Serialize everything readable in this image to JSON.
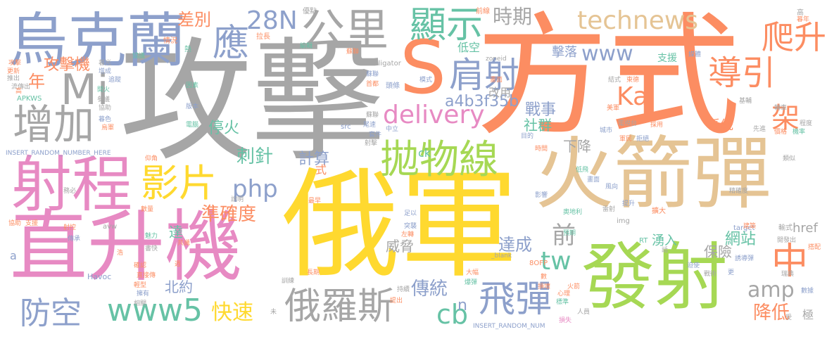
{
  "palette": {
    "gray": "#a6a6a6",
    "orange": "#fc8d62",
    "yellow": "#ffd92f",
    "green": "#a6d854",
    "pink": "#e78ac3",
    "blue": "#8da0cb",
    "teal": "#66c2a5",
    "tan": "#e5c494"
  },
  "words": [
    {
      "text": "攻擊",
      "color": "#a6a6a6"
    },
    {
      "text": "方式",
      "color": "#fc8d62"
    },
    {
      "text": "俄軍",
      "color": "#ffd92f"
    },
    {
      "text": "火箭彈",
      "color": "#e5c494"
    },
    {
      "text": "直升機",
      "color": "#e78ac3"
    },
    {
      "text": "發射",
      "color": "#a6d854"
    },
    {
      "text": "烏克蘭",
      "color": "#8da0cb"
    },
    {
      "text": "射程",
      "color": "#e78ac3"
    },
    {
      "text": "S",
      "color": "#fc8d62"
    },
    {
      "text": "拋物線",
      "color": "#a6d854"
    },
    {
      "text": "Mi",
      "color": "#a6a6a6"
    },
    {
      "text": "公里",
      "color": "#a6a6a6"
    },
    {
      "text": "顯示",
      "color": "#66c2a5"
    },
    {
      "text": "technews",
      "color": "#e5c494"
    },
    {
      "text": "肩射",
      "color": "#8da0cb"
    },
    {
      "text": "增加",
      "color": "#a6a6a6"
    },
    {
      "text": "影片",
      "color": "#ffd92f"
    },
    {
      "text": "俄羅斯",
      "color": "#a6a6a6"
    },
    {
      "text": "飛彈",
      "color": "#8da0cb"
    },
    {
      "text": "www5",
      "color": "#66c2a5"
    },
    {
      "text": "防空",
      "color": "#8da0cb"
    },
    {
      "text": "導引",
      "color": "#fc8d62"
    },
    {
      "text": "delivery",
      "color": "#e78ac3"
    },
    {
      "text": "應",
      "color": "#8da0cb"
    },
    {
      "text": "28N",
      "color": "#8da0cb"
    },
    {
      "text": "時期",
      "color": "#a6a6a6"
    },
    {
      "text": "www",
      "color": "#8da0cb"
    },
    {
      "text": "爬升",
      "color": "#fc8d62"
    },
    {
      "text": "Ka",
      "color": "#fc8d62"
    },
    {
      "text": "架",
      "color": "#fc8d62"
    },
    {
      "text": "中",
      "color": "#fc8d62"
    },
    {
      "text": "php",
      "color": "#8da0cb"
    },
    {
      "text": "cb",
      "color": "#66c2a5"
    },
    {
      "text": "快速",
      "color": "#ffd92f"
    },
    {
      "text": "tw",
      "color": "#66c2a5"
    },
    {
      "text": "前",
      "color": "#a6a6a6"
    },
    {
      "text": "amp",
      "color": "#a6a6a6"
    },
    {
      "text": "降低",
      "color": "#fc8d62"
    },
    {
      "text": "傳統",
      "color": "#8da0cb"
    },
    {
      "text": "達成",
      "color": "#8da0cb"
    },
    {
      "text": "準確度",
      "color": "#fc8d62"
    },
    {
      "text": "刺針",
      "color": "#66c2a5"
    },
    {
      "text": "計算",
      "color": "#8da0cb"
    },
    {
      "text": "差別",
      "color": "#fc8d62"
    },
    {
      "text": "攻擊機",
      "color": "#fc8d62"
    },
    {
      "text": "年",
      "color": "#fc8d62"
    },
    {
      "text": "a4b3f35b",
      "color": "#8da0cb"
    },
    {
      "text": "戰事",
      "color": "#8da0cb"
    },
    {
      "text": "停火",
      "color": "#66c2a5"
    },
    {
      "text": "社群",
      "color": "#66c2a5"
    },
    {
      "text": "下降",
      "color": "#a6a6a6"
    },
    {
      "text": "系統",
      "color": "#fc8d62"
    },
    {
      "text": "網站",
      "color": "#66c2a5"
    },
    {
      "text": "保險",
      "color": "#a6a6a6"
    },
    {
      "text": "湧入",
      "color": "#66c2a5"
    },
    {
      "text": "威脅",
      "color": "#a6a6a6"
    },
    {
      "text": "北約",
      "color": "#8da0cb"
    },
    {
      "text": "達",
      "color": "#66c2a5"
    },
    {
      "text": "href",
      "color": "#a6a6a6"
    },
    {
      "text": "擊落",
      "color": "#8da0cb"
    },
    {
      "text": "改用",
      "color": "#a6a6a6"
    },
    {
      "text": "低空",
      "color": "#66c2a5"
    },
    {
      "text": "支援",
      "color": "#66c2a5"
    },
    {
      "text": "極",
      "color": "#a6a6a6"
    },
    {
      "text": "式",
      "color": "#fc8d62"
    },
    {
      "text": "n",
      "color": "#8da0cb"
    },
    {
      "text": "ck",
      "color": "#66c2a5"
    },
    {
      "text": "a",
      "color": "#8da0cb"
    },
    {
      "text": "INSERT_RANDOM_NUMBER_HERE",
      "color": "#8da0cb"
    },
    {
      "text": "INSERT_RANDOM_NUM",
      "color": "#8da0cb"
    },
    {
      "text": "Alligator",
      "color": "#a6a6a6"
    },
    {
      "text": "zoneid",
      "color": "#a6a6a6"
    },
    {
      "text": "APKWS",
      "color": "#66c2a5"
    },
    {
      "text": "Havoc",
      "color": "#8da0cb"
    },
    {
      "text": "avw",
      "color": "#a6a6a6"
    },
    {
      "text": "src",
      "color": "#8da0cb"
    },
    {
      "text": "img",
      "color": "#a6a6a6"
    },
    {
      "text": "RT",
      "color": "#66c2a5"
    },
    {
      "text": "target",
      "color": "#8da0cb"
    },
    {
      "text": "8OFP",
      "color": "#fc8d62"
    },
    {
      "text": "_blank",
      "color": "#a6a6a6"
    },
    {
      "text": "拉長",
      "color": "#fc8d62"
    },
    {
      "text": "優點",
      "color": "#a6a6a6"
    },
    {
      "text": "前線",
      "color": "#fc8d62"
    },
    {
      "text": "高",
      "color": "#a6a6a6"
    },
    {
      "text": "媒體",
      "color": "#8da0cb"
    },
    {
      "text": "基輔",
      "color": "#a6a6a6"
    },
    {
      "text": "更新",
      "color": "#fc8d62"
    },
    {
      "text": "暮光",
      "color": "#a6a6a6"
    },
    {
      "text": "情況",
      "color": "#fc8d62"
    },
    {
      "text": "熱",
      "color": "#66c2a5"
    },
    {
      "text": "蘇聯",
      "color": "#fc8d62"
    },
    {
      "text": "蘇聯",
      "color": "#8da0cb"
    },
    {
      "text": "蘇聯",
      "color": "#a6a6a6"
    },
    {
      "text": "編輯",
      "color": "#66c2a5"
    },
    {
      "text": "首都",
      "color": "#fc8d62"
    },
    {
      "text": "頭條",
      "color": "#8da0cb"
    },
    {
      "text": "模式",
      "color": "#8da0cb"
    },
    {
      "text": "因素",
      "color": "#66c2a5"
    },
    {
      "text": "版本",
      "color": "#8da0cb"
    },
    {
      "text": "畫面",
      "color": "#fc8d62"
    },
    {
      "text": "追蹤",
      "color": "#8da0cb"
    },
    {
      "text": "協助",
      "color": "#a6a6a6"
    },
    {
      "text": "流傳出",
      "color": "#a6a6a6"
    },
    {
      "text": "推出",
      "color": "#a6a6a6"
    },
    {
      "text": "攻擊",
      "color": "#fc8d62"
    },
    {
      "text": "開火",
      "color": "#66c2a5"
    },
    {
      "text": "暮色",
      "color": "#8da0cb"
    },
    {
      "text": "烏軍",
      "color": "#fc8d62"
    },
    {
      "text": "尾速",
      "color": "#8da0cb"
    },
    {
      "text": "套件",
      "color": "#8da0cb"
    },
    {
      "text": "中立",
      "color": "#8da0cb"
    },
    {
      "text": "射擊",
      "color": "#a6a6a6"
    },
    {
      "text": "目的",
      "color": "#8da0cb"
    },
    {
      "text": "結式",
      "color": "#a6a6a6"
    },
    {
      "text": "東德",
      "color": "#fc8d62"
    },
    {
      "text": "轉車",
      "color": "#a6a6a6"
    },
    {
      "text": "美軍",
      "color": "#fc8d62"
    },
    {
      "text": "電視台",
      "color": "#a6a6a6"
    },
    {
      "text": "採用",
      "color": "#fc8d62"
    },
    {
      "text": "城市",
      "color": "#8da0cb"
    },
    {
      "text": "程度",
      "color": "#a6a6a6"
    },
    {
      "text": "價格",
      "color": "#fc8d62"
    },
    {
      "text": "機率",
      "color": "#66c2a5"
    },
    {
      "text": "先進",
      "color": "#a6a6a6"
    },
    {
      "text": "拒絕",
      "color": "#8da0cb"
    },
    {
      "text": "軍民",
      "color": "#fc8d62"
    },
    {
      "text": "時間",
      "color": "#fc8d62"
    },
    {
      "text": "類似",
      "color": "#a6a6a6"
    },
    {
      "text": "低飛",
      "color": "#66c2a5"
    },
    {
      "text": "畫面",
      "color": "#8da0cb"
    },
    {
      "text": "風向",
      "color": "#8da0cb"
    },
    {
      "text": "精確度",
      "color": "#a6a6a6"
    },
    {
      "text": "影響",
      "color": "#8da0cb"
    },
    {
      "text": "提升",
      "color": "#8da0cb"
    },
    {
      "text": "雷射",
      "color": "#a6a6a6"
    },
    {
      "text": "擴大",
      "color": "#fc8d62"
    },
    {
      "text": "奧地利",
      "color": "#66c2a5"
    },
    {
      "text": "建築",
      "color": "#fc8d62"
    },
    {
      "text": "輸式",
      "color": "#a6a6a6"
    },
    {
      "text": "開發出",
      "color": "#a6a6a6"
    },
    {
      "text": "搭配",
      "color": "#fc8d62"
    },
    {
      "text": "話",
      "color": "#a6a6a6"
    },
    {
      "text": "迫使",
      "color": "#8da0cb"
    },
    {
      "text": "戰術",
      "color": "#a6a6a6"
    },
    {
      "text": "預期",
      "color": "#66c2a5"
    },
    {
      "text": "誘導彈",
      "color": "#8da0cb"
    },
    {
      "text": "更",
      "color": "#8da0cb"
    },
    {
      "text": "瑞典",
      "color": "#a6a6a6"
    },
    {
      "text": "損壞",
      "color": "#fc8d62"
    },
    {
      "text": "心理",
      "color": "#fc8d62"
    },
    {
      "text": "標準",
      "color": "#66c2a5"
    },
    {
      "text": "火箭",
      "color": "#fc8d62"
    },
    {
      "text": "數據",
      "color": "#8da0cb"
    },
    {
      "text": "受",
      "color": "#a6a6a6"
    },
    {
      "text": "損失",
      "color": "#e78ac3"
    },
    {
      "text": "人員",
      "color": "#a6a6a6"
    },
    {
      "text": "數",
      "color": "#fc8d62"
    },
    {
      "text": "大幅",
      "color": "#fc8d62"
    },
    {
      "text": "爆彈",
      "color": "#66c2a5"
    },
    {
      "text": "持續",
      "color": "#a6a6a6"
    },
    {
      "text": "提出",
      "color": "#fc8d62"
    },
    {
      "text": "長期",
      "color": "#fc8d62"
    },
    {
      "text": "訓練",
      "color": "#a6a6a6"
    },
    {
      "text": "未",
      "color": "#a6a6a6"
    },
    {
      "text": "突襲",
      "color": "#8da0cb"
    },
    {
      "text": "左轉",
      "color": "#fc8d62"
    },
    {
      "text": "足以",
      "color": "#8da0cb"
    },
    {
      "text": "最早",
      "color": "#fc8d62"
    },
    {
      "text": "說明",
      "color": "#a6a6a6"
    },
    {
      "text": "魅力",
      "color": "#66c2a5"
    },
    {
      "text": "共識",
      "color": "#fc8d62"
    },
    {
      "text": "浩",
      "color": "#fc8d62"
    },
    {
      "text": "書快",
      "color": "#a6a6a6"
    },
    {
      "text": "週",
      "color": "#fc8d62"
    },
    {
      "text": "射控",
      "color": "#fc8d62"
    },
    {
      "text": "傳承",
      "color": "#8da0cb"
    },
    {
      "text": "協助",
      "color": "#fc8d62"
    },
    {
      "text": "支援",
      "color": "#fc8d62"
    },
    {
      "text": "務必",
      "color": "#a6a6a6"
    },
    {
      "text": "數量",
      "color": "#fc8d62"
    },
    {
      "text": "確認",
      "color": "#fc8d62"
    },
    {
      "text": "仰角",
      "color": "#fc8d62"
    },
    {
      "text": "直接傳",
      "color": "#fc8d62"
    },
    {
      "text": "輕型",
      "color": "#fc8d62"
    },
    {
      "text": "擁有",
      "color": "#8da0cb"
    },
    {
      "text": "相關",
      "color": "#a6a6a6"
    },
    {
      "text": "電腦",
      "color": "#66c2a5"
    },
    {
      "text": "參議",
      "color": "#a6a6a6"
    },
    {
      "text": "協議",
      "color": "#66c2a5"
    },
    {
      "text": "增成",
      "color": "#8da0cb"
    },
    {
      "text": "暮年",
      "color": "#fc8d62"
    },
    {
      "text": "高",
      "color": "#fc8d62"
    },
    {
      "text": "提出",
      "color": "#a6a6a6"
    }
  ]
}
